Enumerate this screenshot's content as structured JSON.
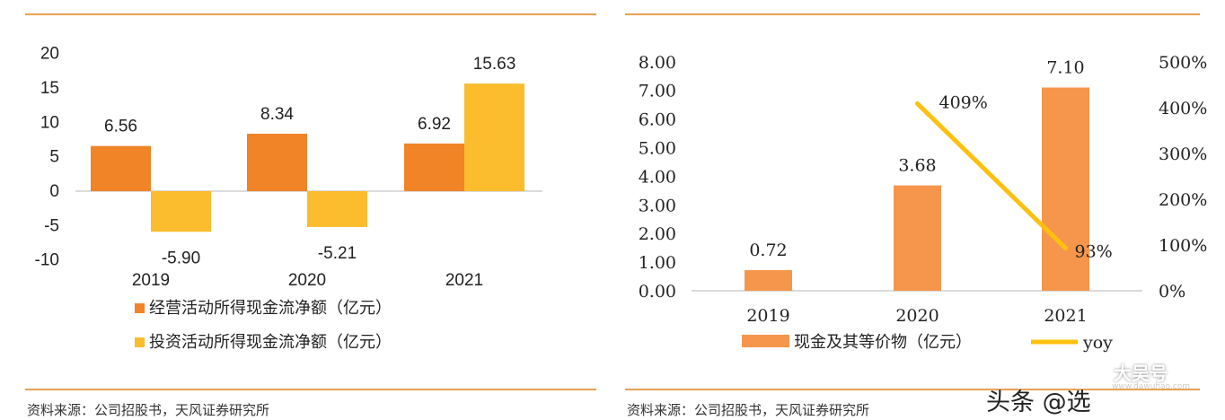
{
  "source_left": "资料来源：公司招股书，天风证券研究所",
  "source_right": "资料来源：公司招股书，天风证券研究所",
  "watermark": {
    "text": "头条 @选",
    "site_text": "大吴号",
    "site_url": "www.dawuhao.com"
  },
  "colors": {
    "rule": "#e8a04f",
    "series_a": "#f08426",
    "series_b": "#fbbc2d",
    "cash_bar": "#f5964c",
    "yoy_line": "#fcc10f"
  },
  "chart_data": [
    {
      "type": "bar",
      "categories": [
        "2019",
        "2020",
        "2021"
      ],
      "series": [
        {
          "name": "经营活动所得现金流净额（亿元）",
          "values": [
            6.56,
            8.34,
            6.92
          ],
          "labels": [
            "6.56",
            "8.34",
            "6.92"
          ]
        },
        {
          "name": "投资活动所得现金流净额（亿元）",
          "values": [
            -5.9,
            -5.21,
            15.63
          ],
          "labels": [
            "-5.90",
            "-5.21",
            "15.63"
          ]
        }
      ],
      "yticks": [
        "20",
        "15",
        "10",
        "5",
        "0",
        "-5",
        "-10"
      ],
      "ylim": [
        -10,
        20
      ],
      "legend": "bottom"
    },
    {
      "type": "bar",
      "categories": [
        "2019",
        "2020",
        "2021"
      ],
      "series": [
        {
          "name": "现金及其等价物（亿元）",
          "type": "bar",
          "values": [
            0.72,
            3.68,
            7.1
          ],
          "labels": [
            "0.72",
            "3.68",
            "7.10"
          ]
        },
        {
          "name": "yoy",
          "type": "line",
          "axis": "right",
          "values": [
            null,
            409,
            93
          ],
          "labels": [
            "",
            "409%",
            "93%"
          ]
        }
      ],
      "yticks_left": [
        "8.00",
        "7.00",
        "6.00",
        "5.00",
        "4.00",
        "3.00",
        "2.00",
        "1.00",
        "0.00"
      ],
      "yticks_right": [
        "500%",
        "400%",
        "300%",
        "200%",
        "100%",
        "0%"
      ],
      "ylim_left": [
        0,
        8
      ],
      "ylim_right": [
        0,
        500
      ],
      "legend": "bottom"
    }
  ]
}
